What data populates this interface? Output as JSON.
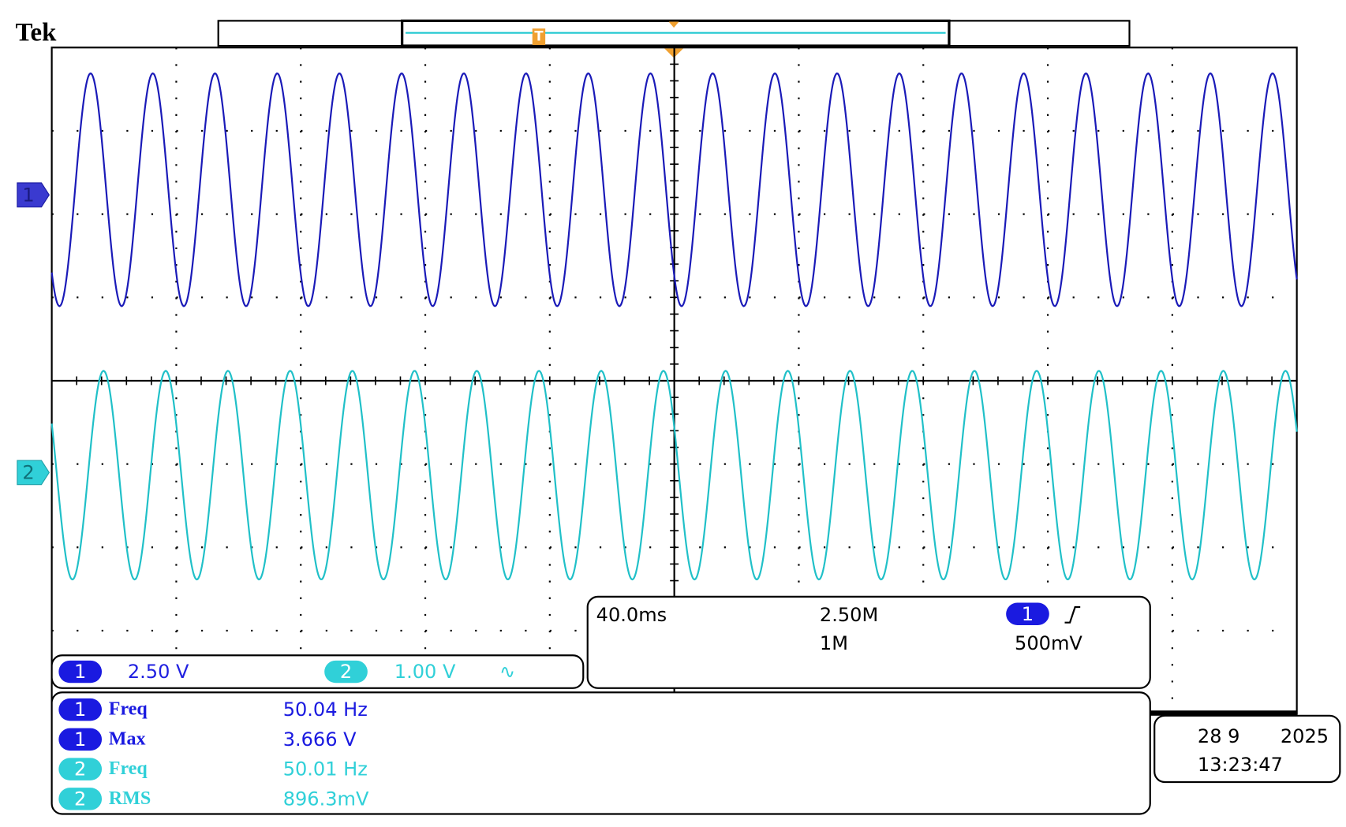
{
  "header": {
    "logo": "Tek",
    "trigger_marker": "T"
  },
  "channel_markers": [
    "1",
    "2"
  ],
  "channel_settings": [
    {
      "channel": "1",
      "scale": "2.50 V"
    },
    {
      "channel": "2",
      "scale": "1.00 V",
      "bandwidth": "∿"
    }
  ],
  "acquisition": {
    "time_per_div": "40.0ms",
    "sample_rate": "2.50M",
    "record_length": "1M",
    "trigger_channel": "1",
    "trigger_level": "500mV"
  },
  "measurements": [
    {
      "channel": "1",
      "name": "Freq",
      "value": "50.04 Hz"
    },
    {
      "channel": "1",
      "name": "Max",
      "value": "3.666 V"
    },
    {
      "channel": "2",
      "name": "Freq",
      "value": "50.01 Hz"
    },
    {
      "channel": "2",
      "name": "RMS",
      "value": "896.3mV"
    }
  ],
  "datetime": {
    "date": "28 9",
    "year": "2025",
    "time": "13:23:47"
  }
}
